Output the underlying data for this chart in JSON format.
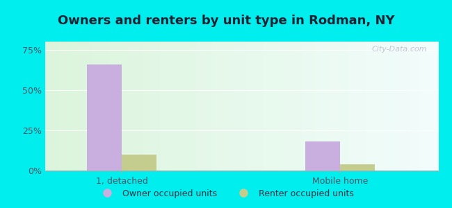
{
  "title": "Owners and renters by unit type in Rodman, NY",
  "categories": [
    "1, detached",
    "Mobile home"
  ],
  "owner_values": [
    66,
    18
  ],
  "renter_values": [
    10,
    4
  ],
  "owner_color": "#c9aee0",
  "renter_color": "#c4cc8e",
  "bar_width": 0.32,
  "ylim": [
    0,
    80
  ],
  "yticks": [
    0,
    25,
    50,
    75
  ],
  "yticklabels": [
    "0%",
    "25%",
    "50%",
    "75%"
  ],
  "legend_labels": [
    "Owner occupied units",
    "Renter occupied units"
  ],
  "outer_bg": "#00eeee",
  "watermark": "City-Data.com",
  "title_fontsize": 13,
  "tick_fontsize": 9,
  "legend_fontsize": 9,
  "group_positions": [
    1.0,
    3.0
  ],
  "xlim": [
    0.3,
    3.9
  ]
}
